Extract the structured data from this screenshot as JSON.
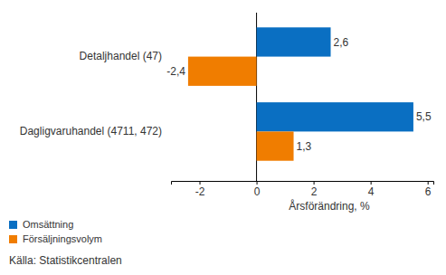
{
  "chart_data": {
    "type": "bar",
    "orientation": "horizontal",
    "categories": [
      "Detaljhandel (47)",
      "Dagligvaruhandel (4711, 472)"
    ],
    "series": [
      {
        "name": "Omsättning",
        "color": "#0a6fc2",
        "values": [
          2.6,
          5.5
        ],
        "value_labels": [
          "2,6",
          "5,5"
        ]
      },
      {
        "name": "Försäljningsvolym",
        "color": "#f07d00",
        "values": [
          -2.4,
          1.3
        ],
        "value_labels": [
          "-2,4",
          "1,3"
        ]
      }
    ],
    "xlim": [
      -3,
      6.2
    ],
    "xticks": [
      -2,
      0,
      2,
      4,
      6
    ],
    "x_label": "Årsförändring, %",
    "data_labels": true,
    "grid": false,
    "legend": "bottom-left",
    "source": "Källa: Statistikcentralen"
  }
}
